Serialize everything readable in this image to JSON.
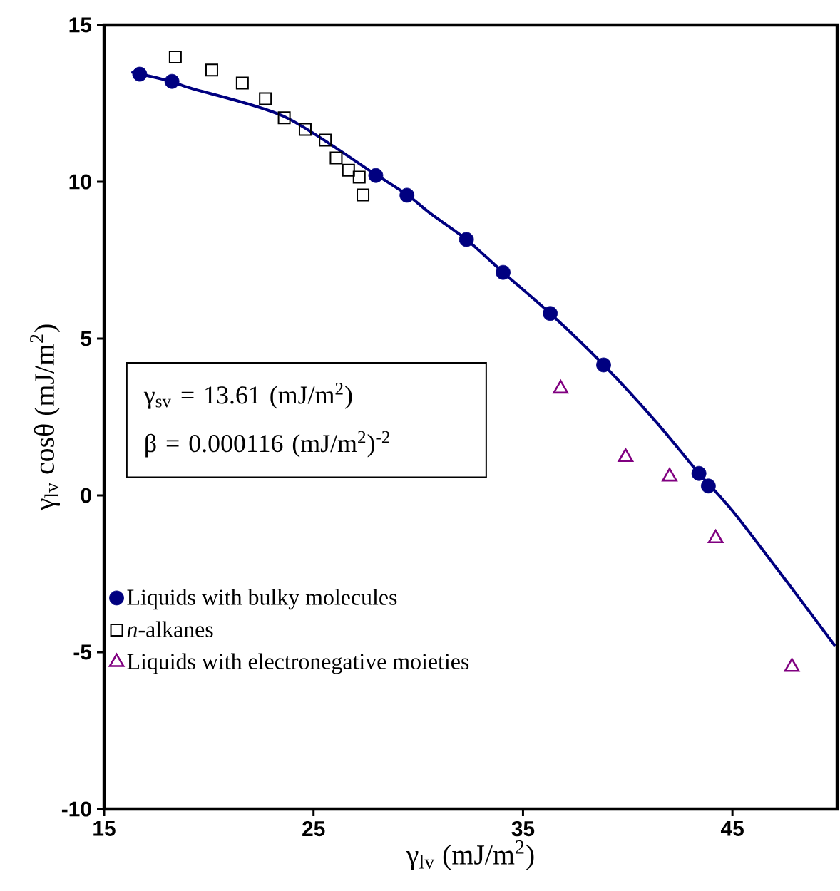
{
  "chart_data": {
    "type": "scatter",
    "xlabel": "γ$_{lv}$ (mJ/m$^{2}$)",
    "ylabel": "γ$_{lv}$ cosθ (mJ/m$^{2}$)",
    "xlim": [
      15,
      50
    ],
    "xticks": [
      15,
      25,
      35,
      45
    ],
    "ylim": [
      -10,
      15
    ],
    "yticks": [
      -10,
      -5,
      0,
      5,
      10,
      15
    ],
    "grid": false,
    "legend": "bottom left",
    "annotations": [
      "γ$_{sv}$ = 13.61 (mJ/m$^{2}$)",
      "β = 0.000116 (mJ/m$^{2}$)$^{-2}$"
    ],
    "series": [
      {
        "type": "line",
        "color": "#000080",
        "marker": "none",
        "x": [
          16.3,
          18.2,
          19.1,
          23.6,
          27.9,
          29.5,
          30.6,
          32.3,
          34.05,
          36.3,
          38.85,
          41.4,
          43.4,
          45.0,
          47.7,
          49.9
        ],
        "values": [
          13.5,
          13.2,
          12.99,
          12.08,
          10.26,
          9.57,
          8.98,
          8.16,
          7.11,
          5.8,
          4.16,
          2.31,
          0.7,
          -0.49,
          -2.84,
          -4.8
        ]
      },
      {
        "name": "Liquids with bulky molecules",
        "color": "#000080",
        "marker": "circle",
        "x": [
          16.7,
          18.24,
          27.97,
          29.46,
          32.3,
          34.05,
          36.3,
          38.85,
          43.4,
          43.85
        ],
        "values": [
          13.43,
          13.2,
          10.2,
          9.57,
          8.16,
          7.11,
          5.8,
          4.16,
          0.7,
          0.3
        ]
      },
      {
        "name": "*n*-alkanes",
        "color": "#000000",
        "marker": "square",
        "x": [
          18.4,
          20.14,
          21.6,
          22.7,
          23.6,
          24.6,
          25.56,
          26.08,
          26.67,
          27.18,
          27.36
        ],
        "values": [
          13.98,
          13.56,
          13.15,
          12.65,
          12.04,
          11.67,
          11.33,
          10.76,
          10.37,
          10.15,
          9.58
        ]
      },
      {
        "name": "Liquids with electronegative moieties",
        "color": "#800080",
        "marker": "triangle",
        "x": [
          36.8,
          39.9,
          42.0,
          44.2,
          47.84
        ],
        "values": [
          3.4,
          1.22,
          0.6,
          -1.37,
          -5.47
        ]
      }
    ]
  }
}
